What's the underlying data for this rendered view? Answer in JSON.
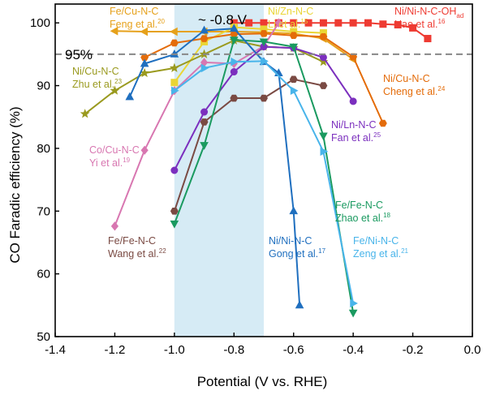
{
  "chart_data": {
    "type": "line",
    "xlabel": "Potential (V vs. RHE)",
    "ylabel": "CO Faradic efficiency (%)",
    "xlim": [
      -1.4,
      0.0
    ],
    "ylim": [
      50,
      103
    ],
    "xticks": [
      "-1.4",
      "-1.2",
      "-1.0",
      "-0.8",
      "-0.6",
      "-0.4",
      "-0.2",
      "0.0"
    ],
    "yticks": [
      "50",
      "60",
      "70",
      "80",
      "90",
      "100"
    ],
    "reference_line": {
      "y": 95,
      "label": "95%"
    },
    "highlight_band": {
      "x_range": [
        -1.0,
        -0.7
      ],
      "label": "~ -0.8 V"
    },
    "series": [
      {
        "color": "#ee3b32",
        "marker": "square",
        "label": {
          "l1": "Ni/Ni-N-C-OH",
          "sub": "ad",
          "l2": "Hao et al.",
          "ref": "16"
        },
        "x": [
          -0.8,
          -0.75,
          -0.7,
          -0.65,
          -0.6,
          -0.55,
          -0.5,
          -0.45,
          -0.4,
          -0.35,
          -0.3,
          -0.25,
          -0.2,
          -0.15
        ],
        "y": [
          100,
          100,
          100,
          100,
          100,
          100,
          100,
          100,
          100,
          100,
          99.8,
          99.7,
          99.2,
          97.5
        ]
      },
      {
        "color": "#e6a11b",
        "marker": "triangle-left",
        "label": {
          "l1": "Fe/Cu-N-C",
          "l2": "Feng et al.",
          "ref": "20"
        },
        "x": [
          -1.2,
          -1.1,
          -1.0,
          -0.9,
          -0.8,
          -0.7,
          -0.6,
          -0.5,
          -0.4
        ],
        "y": [
          98.7,
          98.6,
          98.6,
          98.6,
          98.6,
          98.5,
          98.3,
          97.5,
          94.2
        ]
      },
      {
        "color": "#ead535",
        "marker": "square",
        "label": {
          "l1": "Ni/Zn-N-C",
          "l2": "Li et al.",
          "ref": "15"
        },
        "x": [
          -1.0,
          -0.9,
          -0.8,
          -0.7,
          -0.6,
          -0.5
        ],
        "y": [
          90.5,
          97.0,
          99.3,
          99.0,
          98.6,
          98.4
        ]
      },
      {
        "color": "#e46c0a",
        "marker": "hexagon",
        "label": {
          "l1": "Ni/Cu-N-C",
          "l2": "Cheng et al.",
          "ref": "24"
        },
        "x": [
          -1.1,
          -1.0,
          -0.9,
          -0.8,
          -0.7,
          -0.6,
          -0.5,
          -0.4,
          -0.3
        ],
        "y": [
          94.5,
          96.8,
          97.5,
          98.2,
          98.3,
          98.0,
          97.8,
          94.6,
          84.0
        ]
      },
      {
        "color": "#9a9a1f",
        "marker": "star",
        "label": {
          "l1": "Ni/Cu-N-C",
          "l2": "Zhu et al.",
          "ref": "23"
        },
        "x": [
          -1.3,
          -1.2,
          -1.1,
          -1.0,
          -0.9,
          -0.8,
          -0.7,
          -0.6,
          -0.5
        ],
        "y": [
          85.5,
          89.2,
          92.0,
          92.8,
          95.0,
          97.2,
          96.2,
          96.0,
          93.8
        ]
      },
      {
        "color": "#d877b1",
        "marker": "diamond",
        "label": {
          "l1": "Co/Cu-N-C",
          "l2": "Yi et al.",
          "ref": "19"
        },
        "x": [
          -1.2,
          -1.1,
          -1.0,
          -0.9,
          -0.8,
          -0.7,
          -0.65
        ],
        "y": [
          67.6,
          79.7,
          89.2,
          93.7,
          93.5,
          96.3,
          100.0
        ]
      },
      {
        "color": "#7a4a43",
        "marker": "hexagon",
        "label": {
          "l1": "Fe/Fe-N-C",
          "l2": "Wang et al.",
          "ref": "22"
        },
        "x": [
          -1.0,
          -0.9,
          -0.8,
          -0.7,
          -0.6,
          -0.5
        ],
        "y": [
          70.0,
          84.2,
          88.0,
          88.0,
          91.0,
          90.0
        ]
      },
      {
        "color": "#7b2fbe",
        "marker": "circle",
        "label": {
          "l1": "Ni/Ln-N-C",
          "l2": "Fan et al.",
          "ref": "25"
        },
        "x": [
          -1.0,
          -0.9,
          -0.8,
          -0.7,
          -0.6,
          -0.5,
          -0.4
        ],
        "y": [
          76.5,
          85.8,
          92.2,
          96.2,
          96.0,
          94.5,
          87.5
        ]
      },
      {
        "color": "#1a9a60",
        "marker": "triangle-down",
        "label": {
          "l1": "Fe/Fe-N-C",
          "l2": "Zhao et al.",
          "ref": "18"
        },
        "x": [
          -1.0,
          -0.9,
          -0.8,
          -0.7,
          -0.6,
          -0.5,
          -0.4
        ],
        "y": [
          68.0,
          80.5,
          97.3,
          97.0,
          96.2,
          82.0,
          53.8
        ]
      },
      {
        "color": "#1f6fbf",
        "marker": "triangle-up",
        "label": {
          "l1": "Ni/Ni-N-C",
          "l2": "Gong et al.",
          "ref": "17"
        },
        "x": [
          -1.15,
          -1.1,
          -1.0,
          -0.9,
          -0.8,
          -0.7,
          -0.65,
          -0.6,
          -0.58
        ],
        "y": [
          88.2,
          93.5,
          95.0,
          98.8,
          99.1,
          93.8,
          92.0,
          70.0,
          55.0
        ]
      },
      {
        "color": "#48b4ea",
        "marker": "triangle-right",
        "label": {
          "l1": "Fe/Ni-N-C",
          "l2": "Zeng et al.",
          "ref": "21"
        },
        "x": [
          -1.0,
          -0.9,
          -0.8,
          -0.7,
          -0.6,
          -0.5,
          -0.4
        ],
        "y": [
          89.2,
          92.8,
          93.8,
          93.9,
          89.2,
          79.5,
          55.3
        ]
      }
    ]
  }
}
